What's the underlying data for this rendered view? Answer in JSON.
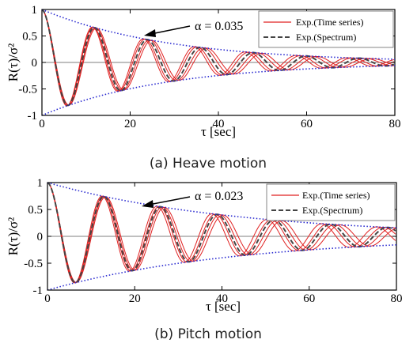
{
  "chart_data": [
    {
      "type": "line",
      "ylabel": "R(τ)/σ²",
      "xlabel": "τ [sec]",
      "xlim": [
        0,
        80
      ],
      "ylim": [
        -1,
        1
      ],
      "xticks": [
        "0",
        "20",
        "40",
        "60",
        "80"
      ],
      "yticks": [
        "-1",
        "-0.5",
        "0",
        "0.5",
        "1"
      ],
      "annotation": "α = 0.035",
      "alpha": 0.035,
      "caption": "(a) Heave motion",
      "legend": {
        "position": "top-right",
        "entries": [
          "Exp.(Time series)",
          "Exp.(Spectrum)"
        ]
      },
      "colors": {
        "time_series": "#e02020",
        "spectrum": "#444444",
        "envelope": "#2a2ad0",
        "arrow": "#000000"
      },
      "period": 12.0,
      "time_series_periods": [
        11.55,
        11.75,
        12.25,
        12.5
      ]
    },
    {
      "type": "line",
      "ylabel": "R(τ)/σ²",
      "xlabel": "τ [sec]",
      "xlim": [
        0,
        80
      ],
      "ylim": [
        -1,
        1
      ],
      "xticks": [
        "0",
        "20",
        "40",
        "60",
        "80"
      ],
      "yticks": [
        "-1",
        "-0.5",
        "0",
        "0.5",
        "1"
      ],
      "annotation": "α = 0.023",
      "alpha": 0.023,
      "caption": "(b) Pitch motion",
      "legend": {
        "position": "top-right",
        "entries": [
          "Exp.(Time series)",
          "Exp.(Spectrum)"
        ]
      },
      "colors": {
        "time_series": "#e02020",
        "spectrum": "#444444",
        "envelope": "#2a2ad0",
        "arrow": "#000000"
      },
      "period": 13.0,
      "time_series_periods": [
        12.6,
        12.85,
        13.2,
        13.45
      ]
    }
  ]
}
